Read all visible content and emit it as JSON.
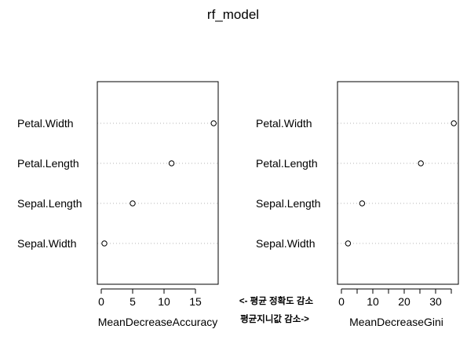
{
  "title": "rf_model",
  "annotations": [
    "<- 평균 정확도 감소",
    "평균지니값 감소->"
  ],
  "annotation_color": "#d9414b",
  "chart_data": [
    {
      "type": "scatter",
      "categories": [
        "Petal.Width",
        "Petal.Length",
        "Sepal.Length",
        "Sepal.Width"
      ],
      "values": [
        17.9,
        11.2,
        5.0,
        0.5
      ],
      "xlabel": "MeanDecreaseAccuracy",
      "ylabel": "",
      "xlim": [
        0,
        18
      ],
      "xticks": [
        0,
        5,
        10,
        15
      ],
      "grid": "dotted-horizontal"
    },
    {
      "type": "scatter",
      "categories": [
        "Petal.Width",
        "Petal.Length",
        "Sepal.Length",
        "Sepal.Width"
      ],
      "values": [
        35.8,
        25.3,
        6.6,
        2.1
      ],
      "xlabel": "MeanDecreaseGini",
      "ylabel": "",
      "xlim": [
        0,
        36
      ],
      "xticks": [
        0,
        5,
        10,
        15,
        20,
        25,
        30,
        35
      ],
      "xticklabels": [
        "0",
        "",
        "10",
        "",
        "20",
        "",
        "30",
        ""
      ],
      "grid": "dotted-horizontal"
    }
  ]
}
